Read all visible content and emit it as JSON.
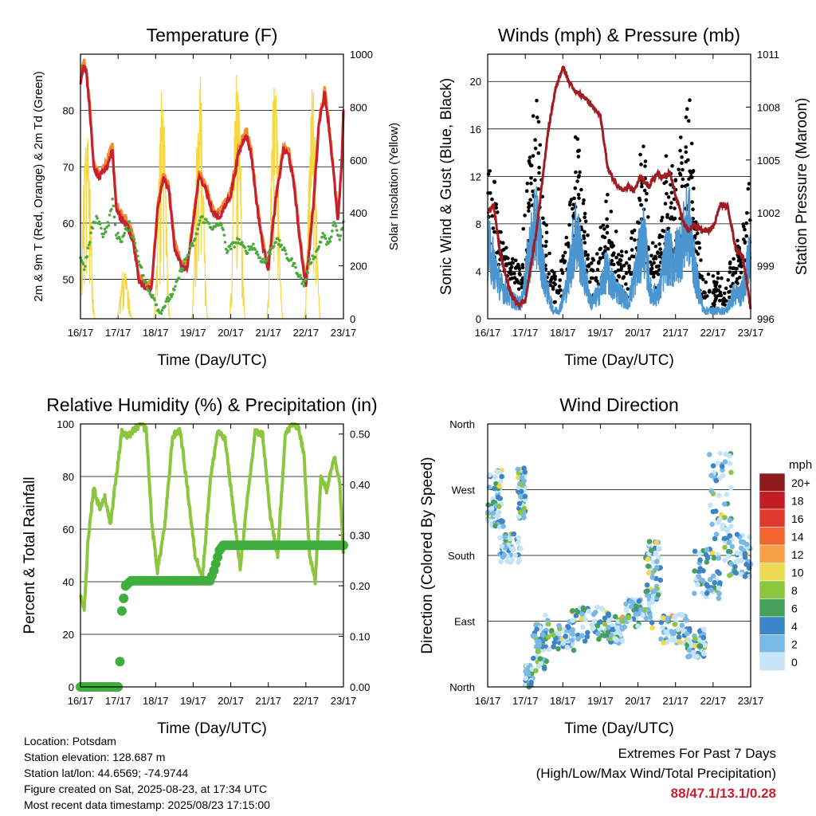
{
  "chart_data": [
    {
      "id": "temperature",
      "type": "line",
      "title": "Temperature (F)",
      "xlabel": "Time (Day/UTC)",
      "ylabel": "2m & 9m T (Red, Orange) & 2m Td (Green)",
      "y2label": "Solar Insolation (Yellow)",
      "x_ticks": [
        "16/17",
        "17/17",
        "18/17",
        "19/17",
        "20/17",
        "21/17",
        "22/17",
        "23/17"
      ],
      "ylim": [
        43,
        90
      ],
      "y_ticks": [
        50,
        60,
        70,
        80
      ],
      "y2lim": [
        0,
        1000
      ],
      "y2_ticks": [
        0,
        200,
        400,
        600,
        800,
        1000
      ],
      "colors": {
        "t2m": "#c8202f",
        "t9m": "#f08a30",
        "td": "#4aaa3c",
        "solar": "#f5d742"
      },
      "series": [
        {
          "key": "t2m",
          "x": [
            0,
            0.08,
            0.15,
            0.25,
            0.35,
            0.5,
            0.7,
            0.85,
            0.95,
            1.05,
            1.2,
            1.4,
            1.55,
            1.75,
            1.9,
            2.05,
            2.2,
            2.35,
            2.5,
            2.7,
            2.85,
            3.0,
            3.15,
            3.3,
            3.5,
            3.7,
            3.85,
            4.0,
            4.2,
            4.4,
            4.55,
            4.7,
            4.85,
            5.0,
            5.2,
            5.4,
            5.55,
            5.7,
            5.85,
            6.0,
            6.2,
            6.35,
            6.5,
            6.6,
            6.75,
            6.85,
            6.95,
            7.0
          ],
          "y": [
            85,
            88,
            87,
            80,
            70,
            68,
            70,
            73,
            63,
            61,
            60,
            57,
            50,
            48,
            49,
            62,
            68,
            66,
            56,
            52,
            52,
            60,
            68,
            67,
            62,
            61,
            63,
            65,
            72,
            76,
            72,
            63,
            56,
            52,
            64,
            73,
            72,
            66,
            56,
            49,
            63,
            78,
            83,
            78,
            68,
            60,
            70,
            80
          ]
        },
        {
          "key": "td",
          "x": [
            0,
            0.1,
            0.2,
            0.3,
            0.45,
            0.6,
            0.75,
            0.85,
            0.95,
            1.1,
            1.3,
            1.5,
            1.65,
            1.8,
            1.95,
            2.1,
            2.3,
            2.5,
            2.7,
            2.9,
            3.05,
            3.2,
            3.4,
            3.55,
            3.75,
            3.9,
            4.05,
            4.2,
            4.4,
            4.6,
            4.75,
            4.9,
            5.05,
            5.2,
            5.35,
            5.5,
            5.65,
            5.8,
            5.95,
            6.1,
            6.3,
            6.45,
            6.6,
            6.75,
            6.9,
            7.0
          ],
          "y": [
            54,
            52,
            55,
            59,
            61,
            58,
            60,
            64,
            58,
            57,
            60,
            55,
            51,
            48,
            47,
            44,
            46,
            48,
            52,
            55,
            57,
            61,
            60,
            59,
            60,
            55,
            56,
            57,
            55,
            56,
            54,
            53,
            55,
            57,
            56,
            54,
            53,
            51,
            49,
            53,
            55,
            58,
            56,
            60,
            57,
            60
          ]
        }
      ],
      "solar_peaks": [
        {
          "x": 0.17,
          "v": 780
        },
        {
          "x": 1.17,
          "v": 200
        },
        {
          "x": 2.17,
          "v": 880
        },
        {
          "x": 3.17,
          "v": 950
        },
        {
          "x": 4.17,
          "v": 980
        },
        {
          "x": 5.17,
          "v": 930
        },
        {
          "x": 6.17,
          "v": 930
        }
      ]
    },
    {
      "id": "winds",
      "type": "scatter",
      "title": "Winds (mph) & Pressure (mb)",
      "xlabel": "Time (Day/UTC)",
      "ylabel": "Sonic Wind & Gust (Blue, Black)",
      "y2label": "Station Pressure (Maroon)",
      "x_ticks": [
        "16/17",
        "17/17",
        "18/17",
        "19/17",
        "20/17",
        "21/17",
        "22/17",
        "23/17"
      ],
      "ylim": [
        0,
        22.3
      ],
      "y_ticks": [
        0,
        4,
        8,
        12,
        16,
        20
      ],
      "y2lim": [
        996,
        1011
      ],
      "y2_ticks": [
        996,
        999,
        1002,
        1005,
        1008,
        1011
      ],
      "colors": {
        "wind": "#4b95d0",
        "gust": "#000000",
        "pressure": "#a01c23"
      },
      "pressure": {
        "x": [
          0,
          0.15,
          0.35,
          0.6,
          0.8,
          1.0,
          1.3,
          1.6,
          1.8,
          2.0,
          2.15,
          2.3,
          2.5,
          2.8,
          3.0,
          3.2,
          3.4,
          3.6,
          3.75,
          3.9,
          4.05,
          4.3,
          4.5,
          4.7,
          4.85,
          5.0,
          5.2,
          5.35,
          5.5,
          5.7,
          5.85,
          6.0,
          6.2,
          6.4,
          6.6,
          6.8,
          7.0
        ],
        "y": [
          1002,
          1002.5,
          999.5,
          997.5,
          996.8,
          997,
          1001,
          1006.5,
          1009,
          1010.3,
          1009.5,
          1009,
          1008.7,
          1008,
          1007.5,
          1004.5,
          1003.7,
          1003.3,
          1003.5,
          1003.2,
          1004,
          1003.5,
          1004.2,
          1004,
          1004.3,
          1003,
          1001.5,
          1001,
          1001.3,
          1001,
          1001,
          1001.2,
          1002.5,
          1002.3,
          1000,
          999.5,
          996.5
        ]
      },
      "wind_envelope": {
        "x": [
          0,
          0.15,
          0.35,
          0.55,
          0.75,
          0.9,
          1.1,
          1.3,
          1.55,
          1.75,
          1.9,
          2.1,
          2.35,
          2.55,
          2.75,
          2.95,
          3.15,
          3.35,
          3.55,
          3.75,
          3.95,
          4.15,
          4.35,
          4.55,
          4.75,
          4.95,
          5.15,
          5.35,
          5.55,
          5.75,
          5.95,
          6.15,
          6.35,
          6.55,
          6.75,
          6.95,
          7.0
        ],
        "y": [
          9,
          7,
          4,
          3,
          2,
          2,
          8,
          12,
          4,
          1,
          1,
          4,
          11,
          6,
          2,
          3,
          6,
          4,
          3,
          2,
          6,
          10,
          3,
          3,
          8,
          7,
          9,
          12,
          5,
          1,
          1,
          1,
          1,
          3,
          3,
          7,
          8
        ]
      }
    },
    {
      "id": "humidity",
      "type": "line",
      "title": "Relative Humidity (%) & Precipitation (in)",
      "xlabel": "Time (Day/UTC)",
      "ylabel": "Percent & Total Rainfall",
      "x_ticks": [
        "16/17",
        "17/17",
        "18/17",
        "19/17",
        "20/17",
        "21/17",
        "22/17",
        "23/17"
      ],
      "ylim": [
        0,
        100
      ],
      "y_ticks": [
        0,
        20,
        40,
        60,
        80,
        100
      ],
      "y2lim": [
        0,
        0.52
      ],
      "y2_ticks": [
        "0.00",
        "0.10",
        "0.20",
        "0.30",
        "0.40",
        "0.50"
      ],
      "colors": {
        "rh": "#8cc63f",
        "precip": "#3fae3c"
      },
      "series": [
        {
          "key": "rh",
          "x": [
            0,
            0.1,
            0.2,
            0.35,
            0.5,
            0.65,
            0.8,
            0.95,
            1.1,
            1.25,
            1.45,
            1.6,
            1.75,
            1.9,
            2.05,
            2.25,
            2.45,
            2.65,
            2.85,
            3.05,
            3.25,
            3.45,
            3.65,
            3.85,
            4.05,
            4.25,
            4.45,
            4.65,
            4.85,
            5.05,
            5.25,
            5.45,
            5.65,
            5.8,
            5.95,
            6.1,
            6.25,
            6.4,
            6.55,
            6.75,
            6.9,
            7.0
          ],
          "y": [
            34,
            30,
            55,
            76,
            68,
            72,
            62,
            80,
            97,
            95,
            98,
            100,
            98,
            62,
            44,
            62,
            95,
            98,
            75,
            50,
            42,
            78,
            97,
            94,
            70,
            45,
            72,
            97,
            96,
            65,
            50,
            96,
            100,
            99,
            88,
            50,
            40,
            80,
            75,
            88,
            78,
            50
          ]
        },
        {
          "key": "precip",
          "x": [
            0,
            0.6,
            1.0,
            1.05,
            1.1,
            1.2,
            1.35,
            2.0,
            3.0,
            3.45,
            3.55,
            3.7,
            3.8,
            4.5,
            5.5,
            6.5,
            7.0
          ],
          "y": [
            0,
            0,
            0,
            0.05,
            0.15,
            0.2,
            0.21,
            0.21,
            0.21,
            0.21,
            0.23,
            0.27,
            0.28,
            0.28,
            0.28,
            0.28,
            0.28
          ]
        }
      ]
    },
    {
      "id": "direction",
      "type": "scatter",
      "title": "Wind Direction",
      "xlabel": "Time (Day/UTC)",
      "ylabel": "Direction (Colored By Speed)",
      "x_ticks": [
        "16/17",
        "17/17",
        "18/17",
        "19/17",
        "20/17",
        "21/17",
        "22/17",
        "23/17"
      ],
      "y_ticks": [
        "North",
        "East",
        "South",
        "West",
        "North"
      ],
      "legend": {
        "title": "mph",
        "labels": [
          "20+",
          "18",
          "16",
          "14",
          "12",
          "10",
          "8",
          "6",
          "4",
          "2",
          "0"
        ],
        "colors": [
          "#8f1a1a",
          "#c01d24",
          "#e03a2e",
          "#f06530",
          "#f7a046",
          "#ecdb52",
          "#8cc63f",
          "#47a05a",
          "#3d85c6",
          "#7ab8e6",
          "#c6e4f7"
        ]
      },
      "clusters": [
        {
          "x0": 0.0,
          "x1": 0.4,
          "d0": 220,
          "d1": 300
        },
        {
          "x0": 0.3,
          "x1": 0.9,
          "d0": 170,
          "d1": 220
        },
        {
          "x0": 0.8,
          "x1": 1.0,
          "d0": 230,
          "d1": 300
        },
        {
          "x0": 1.0,
          "x1": 1.2,
          "d0": 0,
          "d1": 30
        },
        {
          "x0": 1.2,
          "x1": 1.6,
          "d0": 20,
          "d1": 100
        },
        {
          "x0": 1.6,
          "x1": 2.3,
          "d0": 50,
          "d1": 90
        },
        {
          "x0": 2.2,
          "x1": 3.2,
          "d0": 60,
          "d1": 110
        },
        {
          "x0": 3.2,
          "x1": 3.6,
          "d0": 60,
          "d1": 100
        },
        {
          "x0": 3.6,
          "x1": 4.4,
          "d0": 80,
          "d1": 120
        },
        {
          "x0": 4.2,
          "x1": 4.6,
          "d0": 120,
          "d1": 200
        },
        {
          "x0": 4.6,
          "x1": 5.3,
          "d0": 60,
          "d1": 100
        },
        {
          "x0": 5.3,
          "x1": 5.8,
          "d0": 40,
          "d1": 80
        },
        {
          "x0": 5.5,
          "x1": 6.2,
          "d0": 120,
          "d1": 190
        },
        {
          "x0": 5.9,
          "x1": 6.5,
          "d0": 200,
          "d1": 320
        },
        {
          "x0": 6.3,
          "x1": 7.0,
          "d0": 150,
          "d1": 210
        }
      ]
    }
  ],
  "info": {
    "location": "Location: Potsdam",
    "elevation": "Station elevation: 128.687 m",
    "latlon": "Station lat/lon: 44.6569; -74.9744",
    "created": "Figure created on Sat, 2025-08-23, at 17:34 UTC",
    "recent": "Most recent data timestamp: 2025/08/23 17:15:00"
  },
  "extremes": {
    "line1": "Extremes For Past 7 Days",
    "line2": "(High/Low/Max Wind/Total Precipitation)",
    "values": "88/47.1/13.1/0.28"
  }
}
